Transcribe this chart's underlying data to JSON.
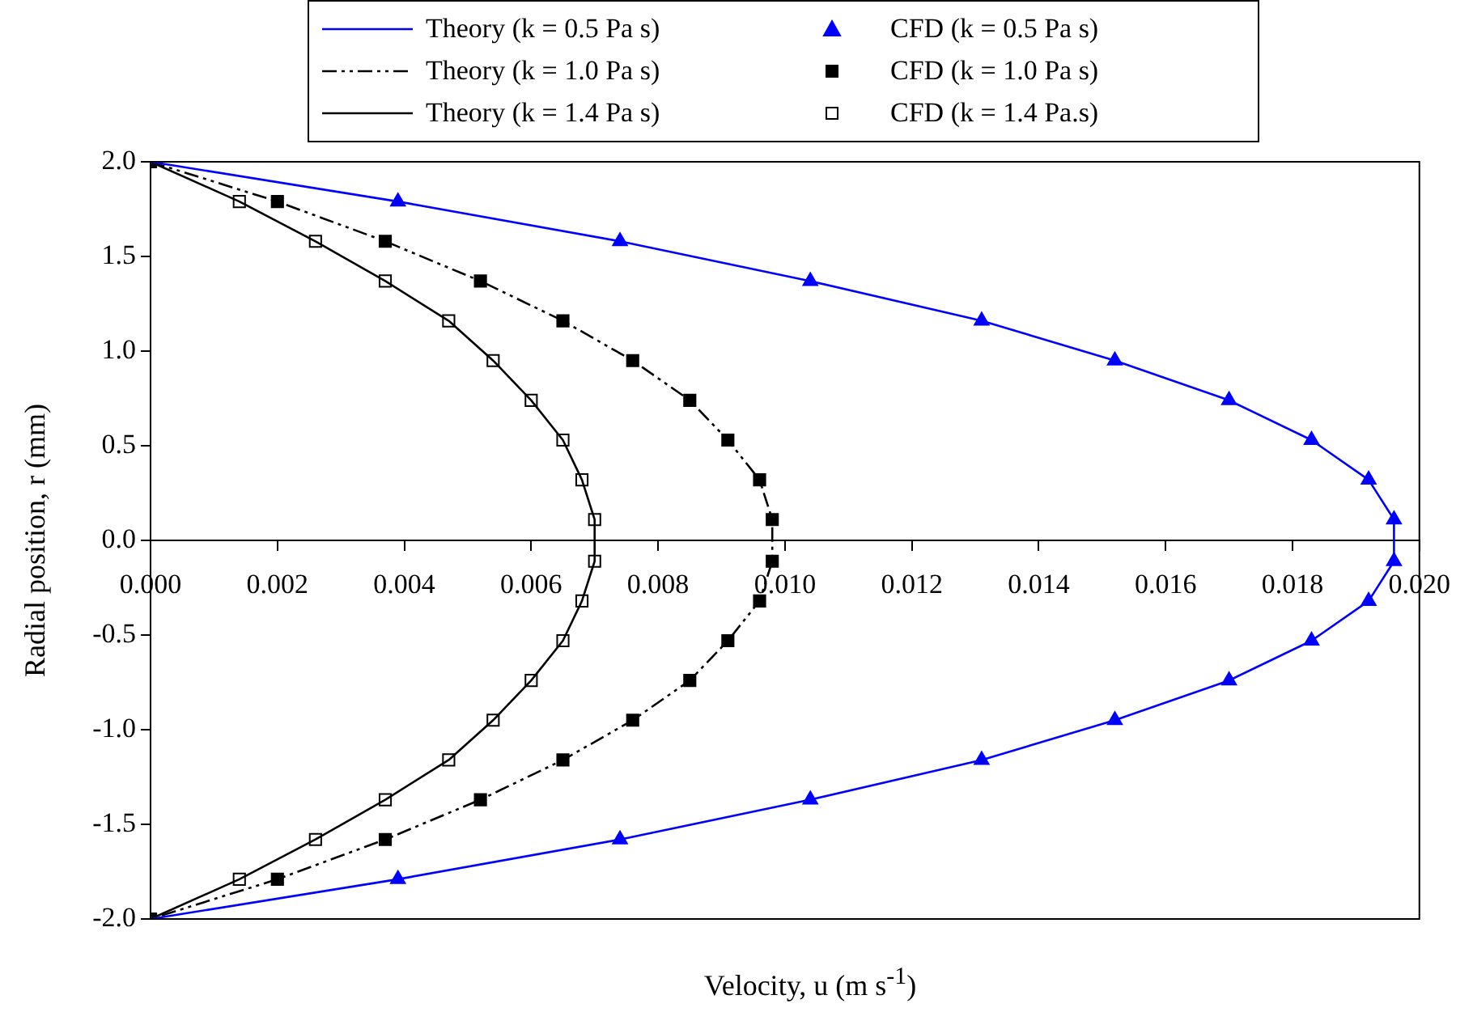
{
  "chart_data": {
    "type": "scatter",
    "xlabel": "Velocity, u (m s$^{-1}$)",
    "ylabel": "Radial position, r (mm)",
    "xlim": [
      0,
      0.02
    ],
    "ylim": [
      -2,
      2
    ],
    "xticks": [
      {
        "value": 0,
        "label": "0.000"
      },
      {
        "value": 0.002,
        "label": "0.002"
      },
      {
        "value": 0.004,
        "label": "0.004"
      },
      {
        "value": 0.006,
        "label": "0.006"
      },
      {
        "value": 0.008,
        "label": "0.008"
      },
      {
        "value": 0.01,
        "label": "0.010"
      },
      {
        "value": 0.012,
        "label": "0.012"
      },
      {
        "value": 0.014,
        "label": "0.014"
      },
      {
        "value": 0.016,
        "label": "0.016"
      },
      {
        "value": 0.018,
        "label": "0.018"
      },
      {
        "value": 0.02,
        "label": "0.020"
      }
    ],
    "yticks": [
      {
        "value": -2,
        "label": "-2.0"
      },
      {
        "value": -1.5,
        "label": "-1.5"
      },
      {
        "value": -1,
        "label": "-1.0"
      },
      {
        "value": -0.5,
        "label": "-0.5"
      },
      {
        "value": 0,
        "label": "0.0"
      },
      {
        "value": 0.5,
        "label": "0.5"
      },
      {
        "value": 1,
        "label": "1.0"
      },
      {
        "value": 1.5,
        "label": "1.5"
      },
      {
        "value": 2,
        "label": "2.0"
      }
    ],
    "grid": false,
    "legend": "top",
    "series": [
      {
        "name": "Theory (k = 0.5 Pa s)",
        "type": "line",
        "color": "#0000ff",
        "line_style": "solid",
        "marker": "none",
        "x": [
          0,
          0.0039,
          0.0074,
          0.0104,
          0.0131,
          0.0152,
          0.017,
          0.0183,
          0.0192,
          0.0196,
          0.0196,
          0.0192,
          0.0183,
          0.017,
          0.0152,
          0.0131,
          0.0104,
          0.0074,
          0.0039,
          0
        ],
        "values": [
          2,
          1.79,
          1.58,
          1.37,
          1.16,
          0.95,
          0.74,
          0.53,
          0.32,
          0.11,
          -0.11,
          -0.32,
          -0.53,
          -0.74,
          -0.95,
          -1.16,
          -1.37,
          -1.58,
          -1.79,
          -2
        ]
      },
      {
        "name": "Theory (k = 1.0 Pa s)",
        "type": "line",
        "color": "#000000",
        "line_style": "dashed",
        "marker": "none",
        "x": [
          0,
          0.002,
          0.0037,
          0.0052,
          0.0065,
          0.0076,
          0.0085,
          0.0091,
          0.0096,
          0.0098,
          0.0098,
          0.0096,
          0.0091,
          0.0085,
          0.0076,
          0.0065,
          0.0052,
          0.0037,
          0.002,
          0
        ],
        "values": [
          2,
          1.79,
          1.58,
          1.37,
          1.16,
          0.95,
          0.74,
          0.53,
          0.32,
          0.11,
          -0.11,
          -0.32,
          -0.53,
          -0.74,
          -0.95,
          -1.16,
          -1.37,
          -1.58,
          -1.79,
          -2
        ]
      },
      {
        "name": "Theory (k = 1.4 Pa s)",
        "type": "line",
        "color": "#000000",
        "line_style": "solid",
        "marker": "none",
        "x": [
          0,
          0.0014,
          0.0026,
          0.0037,
          0.0047,
          0.0054,
          0.006,
          0.0065,
          0.0068,
          0.007,
          0.007,
          0.0068,
          0.0065,
          0.006,
          0.0054,
          0.0047,
          0.0037,
          0.0026,
          0.0014,
          0
        ],
        "values": [
          2,
          1.79,
          1.58,
          1.37,
          1.16,
          0.95,
          0.74,
          0.53,
          0.32,
          0.11,
          -0.11,
          -0.32,
          -0.53,
          -0.74,
          -0.95,
          -1.16,
          -1.37,
          -1.58,
          -1.79,
          -2
        ]
      },
      {
        "name": "CFD (k = 0.5 Pa s)",
        "type": "scatter",
        "color": "#0000ff",
        "marker": "triangle",
        "x": [
          0.0039,
          0.0074,
          0.0104,
          0.0131,
          0.0152,
          0.017,
          0.0183,
          0.0192,
          0.0196,
          0.0196,
          0.0192,
          0.0183,
          0.017,
          0.0152,
          0.0131,
          0.0104,
          0.0074,
          0.0039
        ],
        "values": [
          1.79,
          1.58,
          1.37,
          1.16,
          0.95,
          0.74,
          0.53,
          0.32,
          0.11,
          -0.11,
          -0.32,
          -0.53,
          -0.74,
          -0.95,
          -1.16,
          -1.37,
          -1.58,
          -1.79
        ]
      },
      {
        "name": "CFD (k = 1.0 Pa s)",
        "type": "scatter",
        "color": "#000000",
        "marker": "square",
        "x": [
          0,
          0.002,
          0.0037,
          0.0052,
          0.0065,
          0.0076,
          0.0085,
          0.0091,
          0.0096,
          0.0098,
          0.0098,
          0.0096,
          0.0091,
          0.0085,
          0.0076,
          0.0065,
          0.0052,
          0.0037,
          0.002,
          0
        ],
        "values": [
          2,
          1.79,
          1.58,
          1.37,
          1.16,
          0.95,
          0.74,
          0.53,
          0.32,
          0.11,
          -0.11,
          -0.32,
          -0.53,
          -0.74,
          -0.95,
          -1.16,
          -1.37,
          -1.58,
          -1.79,
          -2
        ]
      },
      {
        "name": "CFD (k = 1.4 Pa.s)",
        "type": "scatter",
        "color": "#ffffff",
        "marker": "square",
        "x": [
          0.0014,
          0.0026,
          0.0037,
          0.0047,
          0.0054,
          0.006,
          0.0065,
          0.0068,
          0.007,
          0.007,
          0.0068,
          0.0065,
          0.006,
          0.0054,
          0.0047,
          0.0037,
          0.0026,
          0.0014
        ],
        "values": [
          1.79,
          1.58,
          1.37,
          1.16,
          0.95,
          0.74,
          0.53,
          0.32,
          0.11,
          -0.11,
          -0.32,
          -0.53,
          -0.74,
          -0.95,
          -1.16,
          -1.37,
          -1.58,
          -1.79
        ]
      }
    ]
  }
}
